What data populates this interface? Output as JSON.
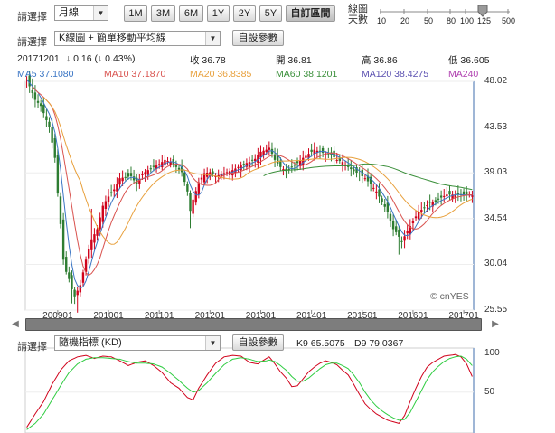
{
  "toolbar": {
    "select_label_1": "請選擇",
    "period_select": "月線",
    "range_buttons": [
      "1M",
      "3M",
      "6M",
      "1Y",
      "2Y",
      "5Y"
    ],
    "custom_range_button": "自訂區間",
    "zoom_label_line1": "線圖",
    "zoom_label_line2": "天數",
    "zoom_ticks": [
      "10",
      "20",
      "50",
      "80",
      "100",
      "125",
      "500"
    ],
    "zoom_value": "125",
    "select_label_2": "請選擇",
    "chart_type_select": "K線圖 + 簡單移動平均線",
    "settings_button": "自設參數"
  },
  "quote": {
    "date": "20171201",
    "change": "↓ 0.16 (↓ 0.43%)",
    "close": "收 36.78",
    "open": "開 36.81",
    "high": "高 36.86",
    "low": "低 36.605"
  },
  "ma_legend": [
    {
      "label": "MA5 37.1080",
      "color": "#3a75c4"
    },
    {
      "label": "MA10 37.1870",
      "color": "#d9534f"
    },
    {
      "label": "MA20 36.8385",
      "color": "#e8a03c"
    },
    {
      "label": "MA60 38.1201",
      "color": "#3a8f3a"
    },
    {
      "label": "MA120 38.4275",
      "color": "#5a4fb0"
    },
    {
      "label": "MA240",
      "color": "#b040b0"
    }
  ],
  "watermark": "© cnYES",
  "scroll": {
    "left_arrow": "◀",
    "right_arrow": "▶"
  },
  "indicator": {
    "select_label": "請選擇",
    "indicator_select": "隨機指標 (KD)",
    "settings_button": "自設參數",
    "k_value": "K9 65.5075",
    "d_value": "D9 79.0367"
  },
  "chart_data": [
    {
      "type": "candlestick",
      "x_ticks": [
        "200901",
        "201001",
        "201101",
        "201201",
        "201301",
        "201401",
        "201501",
        "201601",
        "201701"
      ],
      "y_ticks": [
        48.02,
        43.53,
        39.03,
        34.54,
        30.04,
        25.55
      ],
      "ylim": [
        25.55,
        48.02
      ],
      "up_color": "#d0021b",
      "down_color": "#2e7d32",
      "ma_colors": {
        "MA5": "#3a75c4",
        "MA10": "#d9534f",
        "MA20": "#e8a03c",
        "MA60": "#3a8f3a"
      },
      "anchors": [
        [
          0,
          48.2
        ],
        [
          3,
          46.2
        ],
        [
          5,
          45.6
        ],
        [
          8,
          43.5
        ],
        [
          10,
          40.5
        ],
        [
          11,
          37.0
        ],
        [
          12,
          34.0
        ],
        [
          13,
          30.5
        ],
        [
          14,
          29.3
        ],
        [
          15,
          28.6
        ],
        [
          16,
          27.6
        ],
        [
          17,
          26.9
        ],
        [
          19,
          28.0
        ],
        [
          21,
          30.5
        ],
        [
          23,
          32.5
        ],
        [
          25,
          33.5
        ],
        [
          27,
          35.8
        ],
        [
          29,
          36.7
        ],
        [
          31,
          37.4
        ],
        [
          33,
          38.5
        ],
        [
          35,
          38.6
        ],
        [
          37,
          38.7
        ],
        [
          39,
          37.9
        ],
        [
          41,
          38.9
        ],
        [
          43,
          39.3
        ],
        [
          45,
          39.6
        ],
        [
          47,
          39.9
        ],
        [
          49,
          40.3
        ],
        [
          51,
          40.1
        ],
        [
          53,
          39.6
        ],
        [
          55,
          39.1
        ],
        [
          57,
          37.2
        ],
        [
          58,
          35.3
        ],
        [
          59,
          36.4
        ],
        [
          61,
          38.1
        ],
        [
          63,
          39.0
        ],
        [
          65,
          39.1
        ],
        [
          67,
          38.7
        ],
        [
          69,
          38.9
        ],
        [
          71,
          39.1
        ],
        [
          73,
          39.3
        ],
        [
          75,
          39.6
        ],
        [
          77,
          39.9
        ],
        [
          79,
          40.1
        ],
        [
          81,
          40.4
        ],
        [
          83,
          41.1
        ],
        [
          85,
          41.3
        ],
        [
          86,
          41.5
        ],
        [
          88,
          40.3
        ],
        [
          90,
          39.6
        ],
        [
          92,
          39.2
        ],
        [
          94,
          39.6
        ],
        [
          96,
          40.0
        ],
        [
          98,
          40.5
        ],
        [
          100,
          40.9
        ],
        [
          102,
          41.3
        ],
        [
          104,
          41.1
        ],
        [
          106,
          40.9
        ],
        [
          108,
          40.8
        ],
        [
          110,
          40.3
        ],
        [
          112,
          40.1
        ],
        [
          114,
          39.6
        ],
        [
          116,
          39.2
        ],
        [
          118,
          38.9
        ],
        [
          120,
          38.5
        ],
        [
          122,
          37.9
        ],
        [
          124,
          37.2
        ],
        [
          126,
          36.2
        ],
        [
          128,
          35.2
        ],
        [
          130,
          33.5
        ],
        [
          131,
          33.2
        ],
        [
          133,
          32.3
        ],
        [
          135,
          33.3
        ],
        [
          137,
          34.3
        ],
        [
          139,
          35.2
        ],
        [
          141,
          35.6
        ],
        [
          143,
          36.1
        ],
        [
          145,
          36.2
        ],
        [
          147,
          36.6
        ],
        [
          149,
          36.9
        ],
        [
          151,
          36.9
        ],
        [
          153,
          36.9
        ],
        [
          155,
          36.8
        ],
        [
          157,
          36.9
        ],
        [
          158,
          36.8
        ]
      ],
      "spikes": [
        {
          "i": 18,
          "low": 25.3
        },
        {
          "i": 16,
          "low": 26.2
        },
        {
          "i": 58,
          "low": 33.6
        },
        {
          "i": 132,
          "low": 31.0
        },
        {
          "i": 23,
          "high": 35.5
        },
        {
          "i": 2,
          "high": 48.3
        }
      ]
    },
    {
      "type": "line",
      "title": "隨機指標 (KD)",
      "y_ticks": [
        100,
        50
      ],
      "ylim": [
        0,
        100
      ],
      "series": [
        {
          "name": "K9",
          "color": "#d0021b",
          "anchors": [
            [
              0,
              5
            ],
            [
              3,
              22
            ],
            [
              6,
              38
            ],
            [
              9,
              60
            ],
            [
              12,
              78
            ],
            [
              15,
              90
            ],
            [
              18,
              95
            ],
            [
              21,
              97
            ],
            [
              24,
              93
            ],
            [
              27,
              96
            ],
            [
              30,
              95
            ],
            [
              33,
              90
            ],
            [
              36,
              84
            ],
            [
              39,
              88
            ],
            [
              42,
              90
            ],
            [
              45,
              84
            ],
            [
              48,
              75
            ],
            [
              51,
              62
            ],
            [
              54,
              55
            ],
            [
              57,
              43
            ],
            [
              59,
              40
            ],
            [
              61,
              55
            ],
            [
              64,
              72
            ],
            [
              67,
              87
            ],
            [
              70,
              95
            ],
            [
              73,
              97
            ],
            [
              76,
              96
            ],
            [
              79,
              88
            ],
            [
              82,
              86
            ],
            [
              85,
              93
            ],
            [
              86,
              95
            ],
            [
              88,
              86
            ],
            [
              90,
              76
            ],
            [
              92,
              68
            ],
            [
              94,
              57
            ],
            [
              96,
              58
            ],
            [
              98,
              67
            ],
            [
              100,
              76
            ],
            [
              102,
              82
            ],
            [
              104,
              87
            ],
            [
              106,
              90
            ],
            [
              108,
              88
            ],
            [
              110,
              85
            ],
            [
              112,
              78
            ],
            [
              114,
              72
            ],
            [
              116,
              60
            ],
            [
              118,
              47
            ],
            [
              120,
              35
            ],
            [
              122,
              28
            ],
            [
              124,
              22
            ],
            [
              126,
              18
            ],
            [
              128,
              14
            ],
            [
              130,
              12
            ],
            [
              132,
              10
            ],
            [
              134,
              20
            ],
            [
              136,
              38
            ],
            [
              138,
              55
            ],
            [
              140,
              70
            ],
            [
              142,
              82
            ],
            [
              144,
              88
            ],
            [
              146,
              92
            ],
            [
              148,
              96
            ],
            [
              150,
              97
            ],
            [
              152,
              98
            ],
            [
              154,
              95
            ],
            [
              156,
              86
            ],
            [
              158,
              70
            ]
          ]
        },
        {
          "name": "D9",
          "color": "#2ecc40",
          "anchors": [
            [
              0,
              2
            ],
            [
              3,
              10
            ],
            [
              6,
              22
            ],
            [
              9,
              40
            ],
            [
              12,
              58
            ],
            [
              15,
              75
            ],
            [
              18,
              86
            ],
            [
              21,
              92
            ],
            [
              24,
              94
            ],
            [
              27,
              94
            ],
            [
              30,
              93
            ],
            [
              33,
              92
            ],
            [
              36,
              89
            ],
            [
              39,
              87
            ],
            [
              42,
              87
            ],
            [
              45,
              86
            ],
            [
              48,
              82
            ],
            [
              51,
              74
            ],
            [
              54,
              65
            ],
            [
              57,
              55
            ],
            [
              59,
              50
            ],
            [
              61,
              52
            ],
            [
              64,
              62
            ],
            [
              67,
              74
            ],
            [
              70,
              85
            ],
            [
              73,
              92
            ],
            [
              76,
              94
            ],
            [
              79,
              92
            ],
            [
              82,
              89
            ],
            [
              85,
              90
            ],
            [
              86,
              91
            ],
            [
              88,
              89
            ],
            [
              90,
              84
            ],
            [
              92,
              78
            ],
            [
              94,
              70
            ],
            [
              96,
              64
            ],
            [
              98,
              64
            ],
            [
              100,
              68
            ],
            [
              102,
              74
            ],
            [
              104,
              80
            ],
            [
              106,
              85
            ],
            [
              108,
              87
            ],
            [
              110,
              87
            ],
            [
              112,
              84
            ],
            [
              114,
              80
            ],
            [
              116,
              72
            ],
            [
              118,
              62
            ],
            [
              120,
              50
            ],
            [
              122,
              40
            ],
            [
              124,
              32
            ],
            [
              126,
              26
            ],
            [
              128,
              21
            ],
            [
              130,
              17
            ],
            [
              132,
              14
            ],
            [
              134,
              15
            ],
            [
              136,
              24
            ],
            [
              138,
              38
            ],
            [
              140,
              52
            ],
            [
              142,
              66
            ],
            [
              144,
              76
            ],
            [
              146,
              83
            ],
            [
              148,
              89
            ],
            [
              150,
              93
            ],
            [
              152,
              95
            ],
            [
              154,
              96
            ],
            [
              156,
              92
            ],
            [
              158,
              84
            ]
          ]
        }
      ]
    }
  ]
}
